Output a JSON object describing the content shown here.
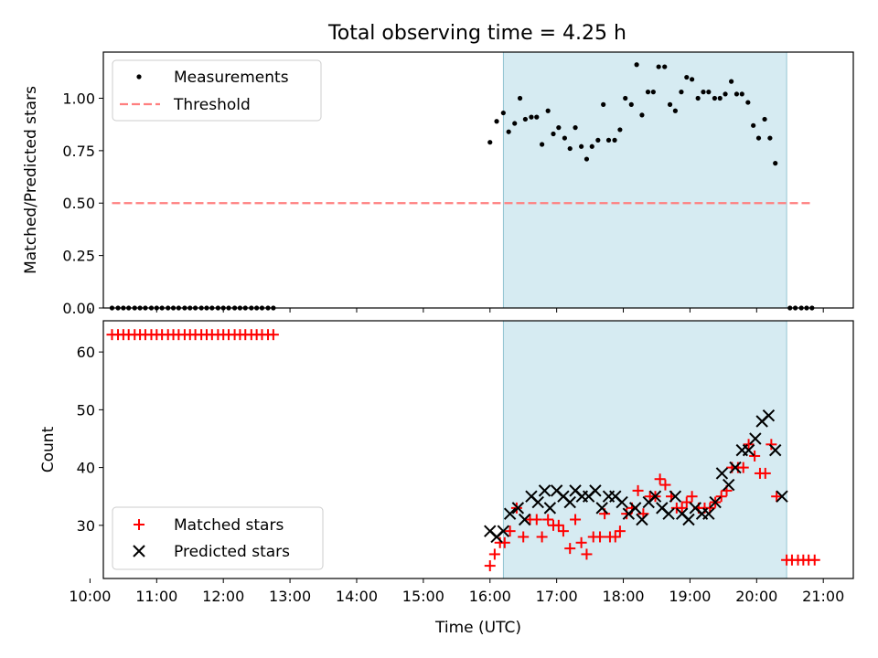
{
  "title": "Total observing time = 4.25 h",
  "colors": {
    "shade": "#add8e6",
    "threshold": "#ff7f7f",
    "matched": "#ff0000",
    "predicted": "#000000",
    "measurement": "#000000"
  },
  "chart_data": [
    {
      "type": "scatter",
      "panel": "top",
      "ylabel": "Matched/Predicted stars",
      "xlim": [
        10.2,
        21.45
      ],
      "ylim": [
        0,
        1.22
      ],
      "yticks": [
        0.0,
        0.25,
        0.5,
        0.75,
        1.0
      ],
      "ytick_labels": [
        "0.00",
        "0.25",
        "0.50",
        "0.75",
        "1.00"
      ],
      "shaded_span": [
        16.2,
        20.45
      ],
      "legend": [
        "Measurements",
        "Threshold"
      ],
      "legend_position": "upper-left",
      "threshold": {
        "name": "Threshold",
        "y": 0.5,
        "x_range": [
          10.33,
          20.83
        ]
      },
      "series": [
        {
          "name": "Measurements",
          "points": [
            [
              10.33,
              0
            ],
            [
              10.42,
              0
            ],
            [
              10.5,
              0
            ],
            [
              10.58,
              0
            ],
            [
              10.67,
              0
            ],
            [
              10.75,
              0
            ],
            [
              10.83,
              0
            ],
            [
              10.92,
              0
            ],
            [
              11.0,
              0
            ],
            [
              11.08,
              0
            ],
            [
              11.17,
              0
            ],
            [
              11.25,
              0
            ],
            [
              11.33,
              0
            ],
            [
              11.42,
              0
            ],
            [
              11.5,
              0
            ],
            [
              11.58,
              0
            ],
            [
              11.67,
              0
            ],
            [
              11.75,
              0
            ],
            [
              11.83,
              0
            ],
            [
              11.92,
              0
            ],
            [
              12.0,
              0
            ],
            [
              12.08,
              0
            ],
            [
              12.17,
              0
            ],
            [
              12.25,
              0
            ],
            [
              12.33,
              0
            ],
            [
              12.42,
              0
            ],
            [
              12.5,
              0
            ],
            [
              12.58,
              0
            ],
            [
              12.67,
              0
            ],
            [
              12.75,
              0
            ],
            [
              16.0,
              0.79
            ],
            [
              16.1,
              0.89
            ],
            [
              16.2,
              0.93
            ],
            [
              16.28,
              0.84
            ],
            [
              16.37,
              0.88
            ],
            [
              16.45,
              1.0
            ],
            [
              16.53,
              0.9
            ],
            [
              16.62,
              0.91
            ],
            [
              16.7,
              0.91
            ],
            [
              16.78,
              0.78
            ],
            [
              16.87,
              0.94
            ],
            [
              16.95,
              0.83
            ],
            [
              17.03,
              0.86
            ],
            [
              17.12,
              0.81
            ],
            [
              17.2,
              0.76
            ],
            [
              17.28,
              0.86
            ],
            [
              17.37,
              0.77
            ],
            [
              17.45,
              0.71
            ],
            [
              17.53,
              0.77
            ],
            [
              17.62,
              0.8
            ],
            [
              17.7,
              0.97
            ],
            [
              17.78,
              0.8
            ],
            [
              17.87,
              0.8
            ],
            [
              17.95,
              0.85
            ],
            [
              18.03,
              1.0
            ],
            [
              18.12,
              0.97
            ],
            [
              18.2,
              1.16
            ],
            [
              18.28,
              0.92
            ],
            [
              18.37,
              1.03
            ],
            [
              18.45,
              1.03
            ],
            [
              18.53,
              1.15
            ],
            [
              18.62,
              1.15
            ],
            [
              18.7,
              0.97
            ],
            [
              18.78,
              0.94
            ],
            [
              18.87,
              1.03
            ],
            [
              18.95,
              1.1
            ],
            [
              19.03,
              1.09
            ],
            [
              19.12,
              1.0
            ],
            [
              19.2,
              1.03
            ],
            [
              19.28,
              1.03
            ],
            [
              19.37,
              1.0
            ],
            [
              19.45,
              1.0
            ],
            [
              19.53,
              1.02
            ],
            [
              19.62,
              1.08
            ],
            [
              19.7,
              1.02
            ],
            [
              19.78,
              1.02
            ],
            [
              19.87,
              0.98
            ],
            [
              19.95,
              0.87
            ],
            [
              20.03,
              0.81
            ],
            [
              20.12,
              0.9
            ],
            [
              20.2,
              0.81
            ],
            [
              20.28,
              0.69
            ],
            [
              20.5,
              0
            ],
            [
              20.58,
              0
            ],
            [
              20.67,
              0
            ],
            [
              20.75,
              0
            ],
            [
              20.83,
              0
            ]
          ]
        }
      ]
    },
    {
      "type": "scatter",
      "panel": "bottom",
      "xlabel": "Time (UTC)",
      "ylabel": "Count",
      "xlim": [
        10.2,
        21.45
      ],
      "ylim": [
        20.8,
        65.4
      ],
      "yticks": [
        30,
        40,
        50,
        60
      ],
      "xticks": [
        10,
        11,
        12,
        13,
        14,
        15,
        16,
        17,
        18,
        19,
        20,
        21
      ],
      "xtick_labels": [
        "10:00",
        "11:00",
        "12:00",
        "13:00",
        "14:00",
        "15:00",
        "16:00",
        "17:00",
        "18:00",
        "19:00",
        "20:00",
        "21:00"
      ],
      "shaded_span": [
        16.2,
        20.45
      ],
      "legend": [
        "Matched stars",
        "Predicted stars"
      ],
      "legend_position": "lower-left",
      "series": [
        {
          "name": "Matched stars",
          "marker": "plus",
          "points": [
            [
              10.33,
              63
            ],
            [
              10.42,
              63
            ],
            [
              10.5,
              63
            ],
            [
              10.58,
              63
            ],
            [
              10.67,
              63
            ],
            [
              10.75,
              63
            ],
            [
              10.83,
              63
            ],
            [
              10.92,
              63
            ],
            [
              11.0,
              63
            ],
            [
              11.08,
              63
            ],
            [
              11.17,
              63
            ],
            [
              11.25,
              63
            ],
            [
              11.33,
              63
            ],
            [
              11.42,
              63
            ],
            [
              11.5,
              63
            ],
            [
              11.58,
              63
            ],
            [
              11.67,
              63
            ],
            [
              11.75,
              63
            ],
            [
              11.83,
              63
            ],
            [
              11.92,
              63
            ],
            [
              12.0,
              63
            ],
            [
              12.08,
              63
            ],
            [
              12.17,
              63
            ],
            [
              12.25,
              63
            ],
            [
              12.33,
              63
            ],
            [
              12.42,
              63
            ],
            [
              12.5,
              63
            ],
            [
              12.58,
              63
            ],
            [
              12.67,
              63
            ],
            [
              12.75,
              63
            ],
            [
              16.0,
              23
            ],
            [
              16.07,
              25
            ],
            [
              16.15,
              27
            ],
            [
              16.22,
              27
            ],
            [
              16.3,
              29
            ],
            [
              16.4,
              33
            ],
            [
              16.5,
              28
            ],
            [
              16.6,
              31
            ],
            [
              16.7,
              31
            ],
            [
              16.78,
              28
            ],
            [
              16.87,
              31
            ],
            [
              16.95,
              30
            ],
            [
              17.03,
              30
            ],
            [
              17.1,
              29
            ],
            [
              17.2,
              26
            ],
            [
              17.28,
              31
            ],
            [
              17.37,
              27
            ],
            [
              17.45,
              25
            ],
            [
              17.55,
              28
            ],
            [
              17.65,
              28
            ],
            [
              17.72,
              32
            ],
            [
              17.8,
              28
            ],
            [
              17.88,
              28
            ],
            [
              17.95,
              29
            ],
            [
              18.05,
              32
            ],
            [
              18.13,
              33
            ],
            [
              18.22,
              36
            ],
            [
              18.3,
              32
            ],
            [
              18.4,
              35
            ],
            [
              18.48,
              35
            ],
            [
              18.55,
              38
            ],
            [
              18.63,
              37
            ],
            [
              18.72,
              35
            ],
            [
              18.8,
              33
            ],
            [
              18.88,
              33
            ],
            [
              18.95,
              34
            ],
            [
              19.03,
              35
            ],
            [
              19.13,
              33
            ],
            [
              19.22,
              33
            ],
            [
              19.3,
              33
            ],
            [
              19.38,
              34
            ],
            [
              19.47,
              35
            ],
            [
              19.55,
              36
            ],
            [
              19.63,
              40
            ],
            [
              19.72,
              40
            ],
            [
              19.8,
              40
            ],
            [
              19.88,
              44
            ],
            [
              19.97,
              42
            ],
            [
              20.05,
              39
            ],
            [
              20.13,
              39
            ],
            [
              20.22,
              44
            ],
            [
              20.3,
              35
            ],
            [
              20.45,
              24
            ],
            [
              20.53,
              24
            ],
            [
              20.62,
              24
            ],
            [
              20.7,
              24
            ],
            [
              20.78,
              24
            ],
            [
              20.87,
              24
            ]
          ]
        },
        {
          "name": "Predicted stars",
          "marker": "x",
          "points": [
            [
              16.0,
              29
            ],
            [
              16.1,
              28
            ],
            [
              16.2,
              29
            ],
            [
              16.3,
              32
            ],
            [
              16.42,
              33
            ],
            [
              16.52,
              31
            ],
            [
              16.62,
              35
            ],
            [
              16.72,
              34
            ],
            [
              16.82,
              36
            ],
            [
              16.9,
              33
            ],
            [
              17.0,
              36
            ],
            [
              17.1,
              35
            ],
            [
              17.2,
              34
            ],
            [
              17.28,
              36
            ],
            [
              17.38,
              35
            ],
            [
              17.48,
              35
            ],
            [
              17.58,
              36
            ],
            [
              17.68,
              33
            ],
            [
              17.78,
              35
            ],
            [
              17.88,
              35
            ],
            [
              17.98,
              34
            ],
            [
              18.08,
              32
            ],
            [
              18.18,
              33
            ],
            [
              18.28,
              31
            ],
            [
              18.38,
              34
            ],
            [
              18.48,
              35
            ],
            [
              18.58,
              33
            ],
            [
              18.68,
              32
            ],
            [
              18.78,
              35
            ],
            [
              18.88,
              32
            ],
            [
              18.98,
              31
            ],
            [
              19.08,
              33
            ],
            [
              19.18,
              32
            ],
            [
              19.28,
              32
            ],
            [
              19.38,
              34
            ],
            [
              19.48,
              39
            ],
            [
              19.58,
              37
            ],
            [
              19.68,
              40
            ],
            [
              19.78,
              43
            ],
            [
              19.88,
              43
            ],
            [
              19.98,
              45
            ],
            [
              20.08,
              48
            ],
            [
              20.18,
              49
            ],
            [
              20.28,
              43
            ],
            [
              20.38,
              35
            ]
          ]
        }
      ]
    }
  ]
}
